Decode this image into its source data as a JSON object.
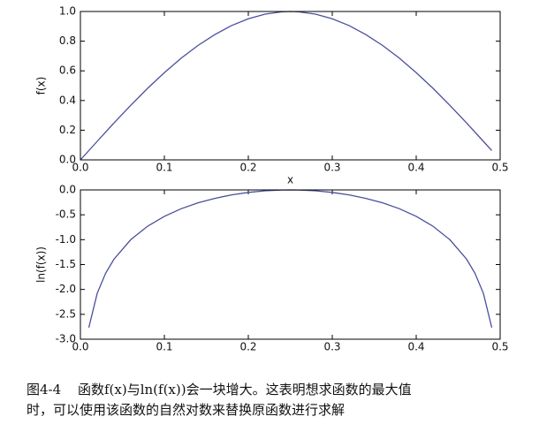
{
  "chart_data": [
    {
      "type": "line",
      "xlabel": "x",
      "ylabel": "f(x)",
      "x": [
        0,
        0.02,
        0.04,
        0.06,
        0.08,
        0.1,
        0.12,
        0.14,
        0.16,
        0.18,
        0.2,
        0.22,
        0.24,
        0.25,
        0.26,
        0.28,
        0.3,
        0.32,
        0.34,
        0.36,
        0.38,
        0.4,
        0.42,
        0.44,
        0.46,
        0.48,
        0.49
      ],
      "series": [
        {
          "color": "#4a4f9c",
          "values": [
            0,
            0.125,
            0.249,
            0.368,
            0.482,
            0.588,
            0.685,
            0.771,
            0.844,
            0.905,
            0.951,
            0.982,
            0.998,
            1.0,
            0.998,
            0.982,
            0.951,
            0.905,
            0.844,
            0.771,
            0.685,
            0.588,
            0.482,
            0.368,
            0.249,
            0.125,
            0.063
          ]
        }
      ],
      "xlim": [
        0,
        0.5
      ],
      "xticks": [
        {
          "value": 0,
          "label": "0.0"
        },
        0.1,
        0.2,
        0.3,
        0.4,
        0.5
      ],
      "ylim": [
        0,
        1
      ],
      "yticks": [
        {
          "value": 0,
          "label": "0.0"
        },
        0.2,
        0.4,
        0.6,
        0.8,
        {
          "value": 1,
          "label": "1.0"
        }
      ],
      "grid": false
    },
    {
      "type": "line",
      "ylabel": "ln(f(x))",
      "x": [
        0.01,
        0.02,
        0.03,
        0.04,
        0.06,
        0.08,
        0.1,
        0.12,
        0.14,
        0.16,
        0.18,
        0.2,
        0.22,
        0.24,
        0.25,
        0.26,
        0.28,
        0.3,
        0.32,
        0.34,
        0.36,
        0.38,
        0.4,
        0.42,
        0.44,
        0.46,
        0.47,
        0.48,
        0.49
      ],
      "series": [
        {
          "color": "#4a4f9c",
          "values": [
            -2.767,
            -2.078,
            -1.675,
            -1.391,
            -0.999,
            -0.73,
            -0.531,
            -0.378,
            -0.26,
            -0.17,
            -0.1,
            -0.05,
            -0.018,
            -0.002,
            0,
            -0.002,
            -0.018,
            -0.05,
            -0.1,
            -0.17,
            -0.26,
            -0.378,
            -0.531,
            -0.73,
            -0.999,
            -1.391,
            -1.675,
            -2.078,
            -2.767
          ]
        }
      ],
      "xlim": [
        0,
        0.5
      ],
      "xticks": [
        {
          "value": 0,
          "label": "0.0"
        },
        0.1,
        0.2,
        0.3,
        0.4,
        0.5
      ],
      "ylim": [
        -3,
        0
      ],
      "yticks": [
        {
          "value": 0,
          "label": "0.0"
        },
        -0.5,
        {
          "value": -1,
          "label": "-1.0"
        },
        -1.5,
        {
          "value": -2,
          "label": "-2.0"
        },
        -2.5,
        {
          "value": -3,
          "label": "-3.0"
        }
      ],
      "grid": false
    }
  ],
  "caption": {
    "label": "图4-4",
    "lines": [
      "函数f(x)与ln(f(x))会一块增大。这表明想求函数的最大值",
      "时，可以使用该函数的自然对数来替换原函数进行求解"
    ]
  }
}
